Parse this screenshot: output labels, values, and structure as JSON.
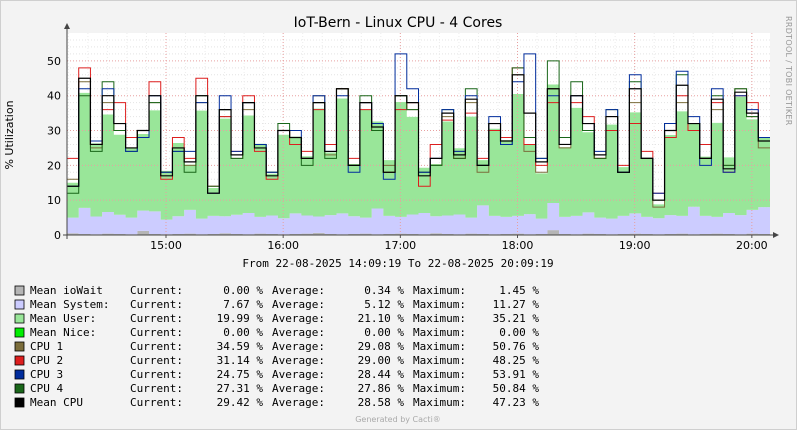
{
  "chart_data": {
    "type": "area",
    "title": "IoT-Bern - Linux CPU - 4 Cores",
    "ylabel": "% Utilization",
    "xlabel": "",
    "ylim": [
      0,
      58
    ],
    "yticks": [
      "0",
      "10",
      "20",
      "30",
      "40",
      "50"
    ],
    "xticks": [
      "15:00",
      "16:00",
      "17:00",
      "18:00",
      "19:00",
      "20:00"
    ],
    "xrange_hours": [
      14.155,
      20.155
    ],
    "grid": true,
    "stacked_series": [
      "Mean ioWait",
      "Mean System",
      "Mean User"
    ],
    "line_series": [
      "CPU 1",
      "CPU 2",
      "CPU 3",
      "CPU 4",
      "Mean CPU"
    ],
    "x": [
      14.16,
      14.26,
      14.36,
      14.46,
      14.56,
      14.66,
      14.76,
      14.86,
      14.96,
      15.06,
      15.16,
      15.26,
      15.36,
      15.46,
      15.56,
      15.66,
      15.76,
      15.86,
      15.96,
      16.06,
      16.16,
      16.26,
      16.36,
      16.46,
      16.56,
      16.66,
      16.76,
      16.86,
      16.96,
      17.06,
      17.16,
      17.26,
      17.36,
      17.46,
      17.56,
      17.66,
      17.76,
      17.86,
      17.96,
      18.06,
      18.16,
      18.26,
      18.36,
      18.46,
      18.56,
      18.66,
      18.76,
      18.86,
      18.96,
      19.06,
      19.16,
      19.26,
      19.36,
      19.46,
      19.56,
      19.66,
      19.76,
      19.86,
      19.96,
      20.06
    ],
    "mean_iowait": [
      0.5,
      0.3,
      0.2,
      0.4,
      0.3,
      0.2,
      1.2,
      0.3,
      0.2,
      0.3,
      0.4,
      0.2,
      0.3,
      0.5,
      0.3,
      0.2,
      0.4,
      0.3,
      0.2,
      0.3,
      0.4,
      0.6,
      0.3,
      0.2,
      0.3,
      0.4,
      0.2,
      0.3,
      0.4,
      0.3,
      0.2,
      0.5,
      0.3,
      0.2,
      0.4,
      0.3,
      0.2,
      0.3,
      0.4,
      0.2,
      0.3,
      1.4,
      0.3,
      0.2,
      0.4,
      0.3,
      0.2,
      0.3,
      0.4,
      0.3,
      0.2,
      0.3,
      0.4,
      0.2,
      0.3,
      0.4,
      0.3,
      0.2,
      0.4,
      0.3
    ],
    "mean_system": [
      4.5,
      7.5,
      5.1,
      6.2,
      5.5,
      4.8,
      5.8,
      6.5,
      4.2,
      5.1,
      6.8,
      4.5,
      5.2,
      4.9,
      5.5,
      6.1,
      4.8,
      5.3,
      4.6,
      5.9,
      5.2,
      4.7,
      5.4,
      6.0,
      5.1,
      4.6,
      7.4,
      5.2,
      4.8,
      5.6,
      6.1,
      4.9,
      5.3,
      5.7,
      4.6,
      8.2,
      5.3,
      4.9,
      5.1,
      5.8,
      4.4,
      7.8,
      4.9,
      5.3,
      6.1,
      4.7,
      4.5,
      5.2,
      5.8,
      4.9,
      4.6,
      5.4,
      5.1,
      7.9,
      5.2,
      4.8,
      6.0,
      5.5,
      6.8,
      7.7
    ],
    "mean_user": [
      10,
      33,
      21,
      28,
      23,
      20,
      22,
      29,
      14,
      21,
      13,
      31,
      8,
      28,
      16,
      28,
      21,
      12,
      24,
      22,
      17,
      31,
      18,
      33,
      15,
      31,
      25,
      16,
      33,
      28,
      13,
      15,
      27,
      19,
      29,
      13,
      25,
      22,
      35,
      20,
      13,
      34,
      20,
      31,
      23,
      17,
      27,
      14,
      29,
      17,
      4,
      23,
      30,
      24,
      17,
      27,
      16,
      34,
      26,
      20
    ],
    "cpu1": [
      16,
      44,
      25,
      38,
      30,
      25,
      30,
      38,
      18,
      25,
      20,
      38,
      12,
      34,
      22,
      36,
      26,
      18,
      30,
      28,
      22,
      40,
      23,
      42,
      20,
      38,
      32,
      20,
      40,
      36,
      18,
      20,
      34,
      24,
      38,
      18,
      32,
      28,
      46,
      24,
      18,
      42,
      25,
      40,
      30,
      22,
      34,
      18,
      38,
      22,
      8,
      30,
      38,
      32,
      22,
      36,
      20,
      42,
      34,
      25
    ],
    "cpu2": [
      22,
      48,
      26,
      36,
      38,
      28,
      30,
      44,
      16,
      28,
      22,
      45,
      14,
      34,
      24,
      40,
      24,
      16,
      30,
      26,
      24,
      36,
      26,
      42,
      22,
      36,
      30,
      18,
      36,
      38,
      14,
      26,
      33,
      22,
      35,
      22,
      30,
      28,
      48,
      26,
      20,
      38,
      28,
      38,
      34,
      22,
      30,
      20,
      32,
      24,
      12,
      28,
      40,
      30,
      26,
      38,
      18,
      40,
      38,
      28
    ],
    "cpu3": [
      14,
      42,
      27,
      42,
      32,
      24,
      28,
      40,
      18,
      24,
      24,
      38,
      12,
      40,
      24,
      38,
      26,
      18,
      30,
      30,
      22,
      40,
      24,
      40,
      18,
      38,
      32,
      16,
      52,
      42,
      18,
      22,
      36,
      24,
      40,
      20,
      34,
      26,
      44,
      52,
      22,
      40,
      26,
      40,
      32,
      24,
      36,
      18,
      46,
      22,
      12,
      32,
      47,
      34,
      20,
      42,
      18,
      40,
      36,
      28
    ],
    "cpu4": [
      12,
      40,
      24,
      44,
      30,
      24,
      30,
      38,
      18,
      24,
      18,
      40,
      14,
      36,
      22,
      38,
      26,
      18,
      32,
      28,
      20,
      38,
      22,
      42,
      20,
      40,
      30,
      18,
      40,
      36,
      18,
      20,
      36,
      22,
      42,
      20,
      32,
      26,
      48,
      28,
      22,
      50,
      28,
      44,
      30,
      22,
      36,
      18,
      44,
      22,
      10,
      32,
      46,
      32,
      22,
      40,
      20,
      42,
      34,
      28
    ],
    "mean_cpu": [
      14,
      45,
      26,
      40,
      32,
      25,
      30,
      40,
      17,
      25,
      21,
      40,
      12,
      36,
      23,
      38,
      25,
      17,
      30,
      28,
      22,
      38,
      24,
      42,
      20,
      38,
      31,
      18,
      40,
      38,
      17,
      22,
      35,
      23,
      39,
      20,
      32,
      27,
      46,
      35,
      21,
      42,
      26,
      40,
      32,
      23,
      34,
      18,
      42,
      22,
      10,
      30,
      43,
      32,
      22,
      39,
      19,
      41,
      35,
      27
    ],
    "colors": {
      "iowait": "#B5B5B5",
      "system": "#CCCCFF",
      "user": "#99E699",
      "nice": "#00EE00",
      "cpu1": "#7B6D3B",
      "cpu2": "#DD1E1E",
      "cpu3": "#002C9C",
      "cpu4": "#196619",
      "mean": "#000000"
    }
  },
  "subtitle": "From 22-08-2025 14:09:19 To 22-08-2025 20:09:19",
  "watermark": "RRDTOOL / TOBI OETIKER",
  "footer": "Generated by Cacti®",
  "legend": [
    {
      "label": "Mean ioWait",
      "color": "#B5B5B5",
      "current": "0.00 %",
      "average": "0.34 %",
      "maximum": "1.45 %"
    },
    {
      "label": "Mean System:",
      "color": "#CCCCFF",
      "current": "7.67 %",
      "average": "5.12 %",
      "maximum": "11.27 %"
    },
    {
      "label": "Mean User:",
      "color": "#99E699",
      "current": "19.99 %",
      "average": "21.10 %",
      "maximum": "35.21 %"
    },
    {
      "label": "Mean Nice:",
      "color": "#00EE00",
      "current": "0.00 %",
      "average": "0.00 %",
      "maximum": "0.00 %"
    },
    {
      "label": "CPU 1",
      "color": "#7B6D3B",
      "current": "34.59 %",
      "average": "29.08 %",
      "maximum": "50.76 %"
    },
    {
      "label": "CPU 2",
      "color": "#DD1E1E",
      "current": "31.14 %",
      "average": "29.00 %",
      "maximum": "48.25 %"
    },
    {
      "label": "CPU 3",
      "color": "#002C9C",
      "current": "24.75 %",
      "average": "28.44 %",
      "maximum": "53.91 %"
    },
    {
      "label": "CPU 4",
      "color": "#196619",
      "current": "27.31 %",
      "average": "27.86 %",
      "maximum": "50.84 %"
    },
    {
      "label": "Mean CPU",
      "color": "#000000",
      "current": "29.42 %",
      "average": "28.58 %",
      "maximum": "47.23 %"
    }
  ],
  "labels": {
    "current": "Current:",
    "average": "Average:",
    "maximum": "Maximum:"
  }
}
